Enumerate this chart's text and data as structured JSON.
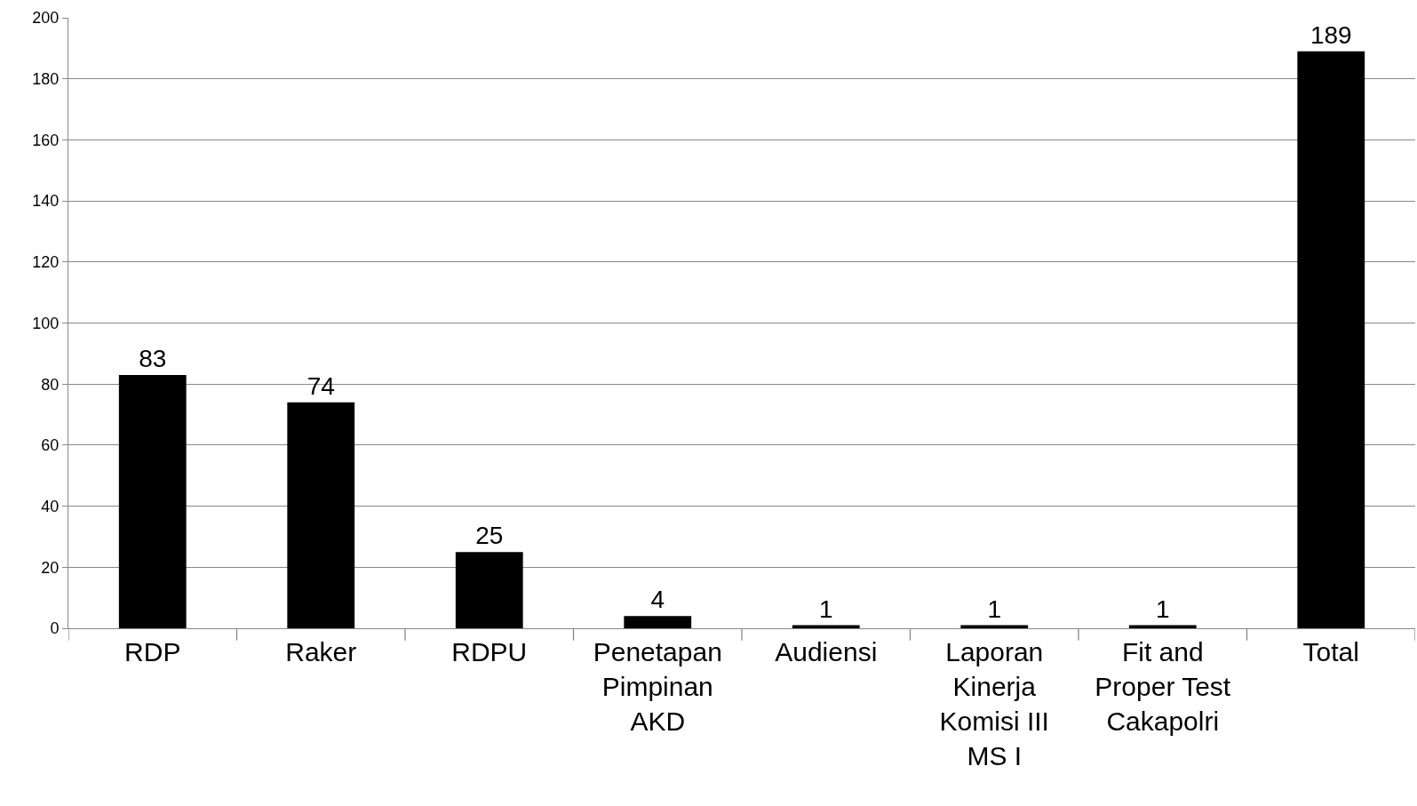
{
  "chart_data": {
    "type": "bar",
    "categories": [
      "RDP",
      "Raker",
      "RDPU",
      "Penetapan Pimpinan AKD",
      "Audiensi",
      "Laporan Kinerja Komisi III MS I",
      "Fit and Proper Test Cakapolri",
      "Total"
    ],
    "values": [
      83,
      74,
      25,
      4,
      1,
      1,
      1,
      189
    ],
    "color": "#000000",
    "ylim": [
      0,
      200
    ],
    "yticks": [
      0,
      20,
      40,
      60,
      80,
      100,
      120,
      140,
      160,
      180,
      200
    ],
    "grid": "y",
    "data_labels": true
  }
}
